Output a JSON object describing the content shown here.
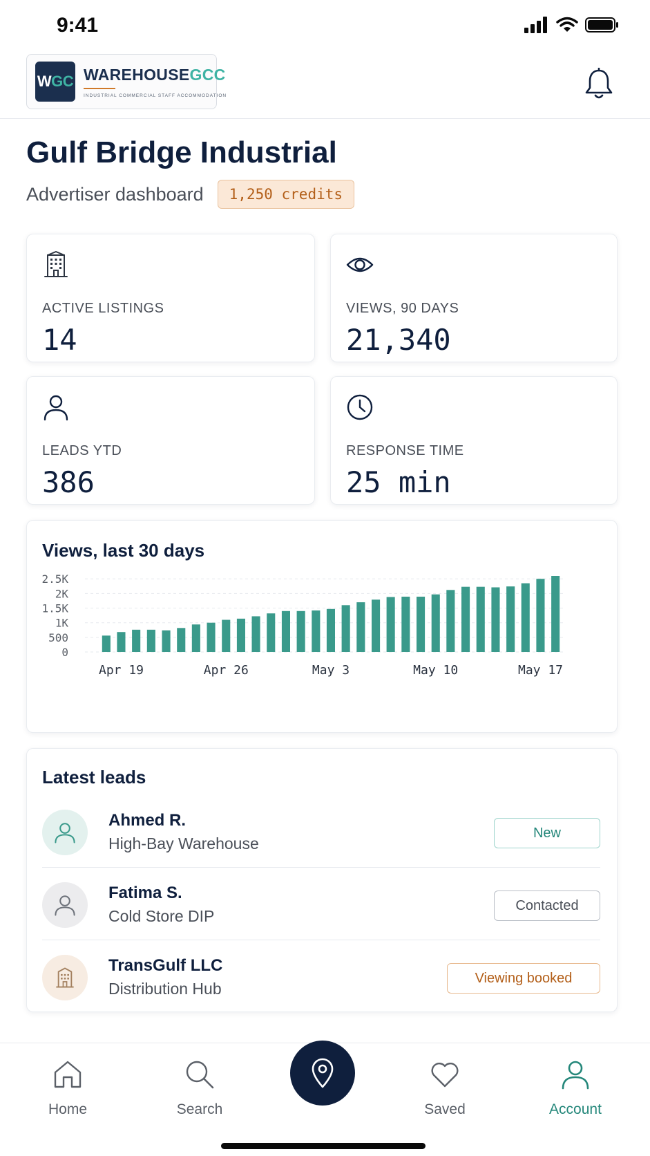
{
  "status": {
    "time": "9:41"
  },
  "header": {
    "logo_mark_w": "W",
    "logo_mark_gc": "GC",
    "logo_word_a": "WAREHOUSE",
    "logo_word_b": "GCC",
    "logo_tagline": "INDUSTRIAL COMMERCIAL STAFF ACCOMMODATION"
  },
  "page": {
    "title": "Gulf Bridge Industrial",
    "subtitle": "Advertiser dashboard",
    "credits": "1,250 credits"
  },
  "stats": [
    {
      "icon": "building-icon",
      "label": "ACTIVE LISTINGS",
      "value": "14"
    },
    {
      "icon": "eye-icon",
      "label": "VIEWS, 90 DAYS",
      "value": "21,340"
    },
    {
      "icon": "user-icon",
      "label": "LEADS YTD",
      "value": "386"
    },
    {
      "icon": "clock-icon",
      "label": "RESPONSE TIME",
      "value": "25 min"
    }
  ],
  "chart_data": {
    "type": "bar",
    "title": "Views, last 30 days",
    "xlabel": "",
    "ylabel": "",
    "ylim": [
      0,
      2600
    ],
    "yticks": [
      {
        "value": 0,
        "label": "0"
      },
      {
        "value": 500,
        "label": "500"
      },
      {
        "value": 1000,
        "label": "1K"
      },
      {
        "value": 1500,
        "label": "1.5K"
      },
      {
        "value": 2000,
        "label": "2K"
      },
      {
        "value": 2500,
        "label": "2.5K"
      }
    ],
    "xticks": [
      {
        "index": 1,
        "label": "Apr 19"
      },
      {
        "index": 8,
        "label": "Apr 26"
      },
      {
        "index": 15,
        "label": "May 3"
      },
      {
        "index": 22,
        "label": "May 10"
      },
      {
        "index": 29,
        "label": "May 17"
      }
    ],
    "values": [
      560,
      680,
      760,
      760,
      740,
      820,
      940,
      1000,
      1100,
      1140,
      1220,
      1320,
      1400,
      1400,
      1420,
      1470,
      1600,
      1700,
      1790,
      1880,
      1890,
      1890,
      1970,
      2120,
      2230,
      2230,
      2210,
      2240,
      2350,
      2500,
      2600
    ],
    "grid": true,
    "color": "#3a9a8b"
  },
  "leads": {
    "title": "Latest leads",
    "items": [
      {
        "name": "Ahmed R.",
        "property": "High-Bay Warehouse",
        "status": "New"
      },
      {
        "name": "Fatima S.",
        "property": "Cold Store DIP",
        "status": "Contacted"
      },
      {
        "name": "TransGulf LLC",
        "property": "Distribution Hub",
        "status": "Viewing booked"
      }
    ]
  },
  "nav": {
    "items": [
      {
        "label": "Home"
      },
      {
        "label": "Search"
      },
      {
        "label": "Saved"
      },
      {
        "label": "Account"
      }
    ],
    "active": "Account"
  }
}
